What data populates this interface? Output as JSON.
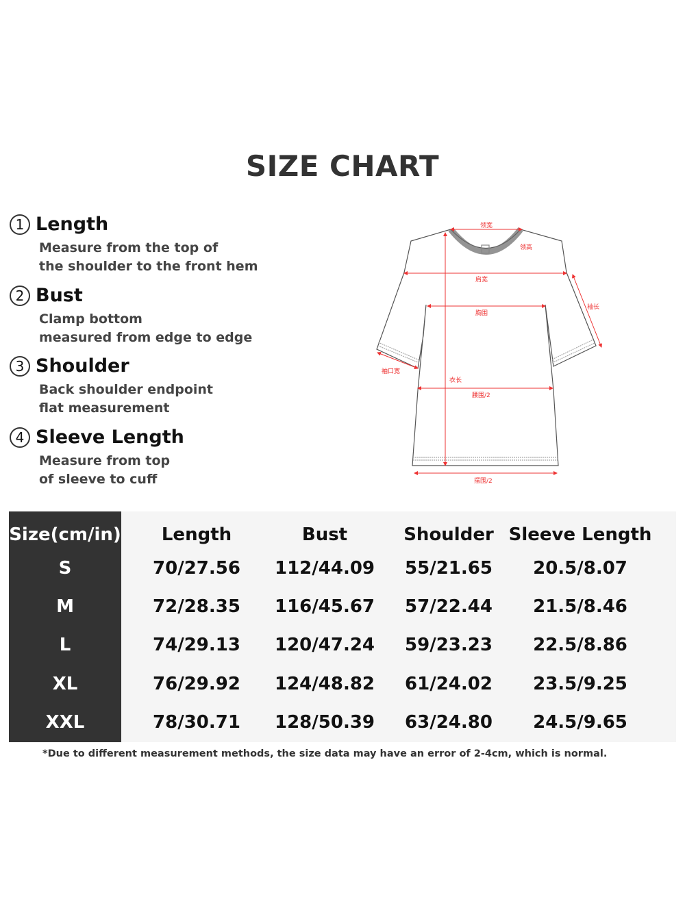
{
  "title": "SIZE CHART",
  "measurements": [
    {
      "num": "1",
      "name": "Length",
      "desc": [
        "Measure from the top of",
        "the shoulder to the front hem"
      ]
    },
    {
      "num": "2",
      "name": "Bust",
      "desc": [
        "Clamp bottom",
        "measured from edge to edge"
      ]
    },
    {
      "num": "3",
      "name": "Shoulder",
      "desc": [
        "Back shoulder endpoint",
        "flat measurement"
      ]
    },
    {
      "num": "4",
      "name": "Sleeve Length",
      "desc": [
        "Measure from top",
        "of sleeve to cuff"
      ]
    }
  ],
  "diagram_labels": {
    "neck_width": "领宽",
    "neck_height": "领高",
    "shoulder_width": "肩宽",
    "chest": "胸围",
    "sleeve_length": "袖长",
    "cuff_width": "袖口宽",
    "body_length": "衣长",
    "waist_half": "腰围/2",
    "hem_half": "摆围/2"
  },
  "table": {
    "headers": [
      "Size(cm/in)",
      "Length",
      "Bust",
      "Shoulder",
      "Sleeve Length"
    ],
    "rows": [
      [
        "S",
        "70/27.56",
        "112/44.09",
        "55/21.65",
        "20.5/8.07"
      ],
      [
        "M",
        "72/28.35",
        "116/45.67",
        "57/22.44",
        "21.5/8.46"
      ],
      [
        "L",
        "74/29.13",
        "120/47.24",
        "59/23.23",
        "22.5/8.86"
      ],
      [
        "XL",
        "76/29.92",
        "124/48.82",
        "61/24.02",
        "23.5/9.25"
      ],
      [
        "XXL",
        "78/30.71",
        "128/50.39",
        "63/24.80",
        "24.5/9.65"
      ]
    ]
  },
  "note": "*Due to different measurement methods, the size data may have an error of 2-4cm, which is normal.",
  "colors": {
    "size_column": "#333333",
    "table_bg": "#f5f5f5",
    "measure_lines": "#e33333"
  }
}
